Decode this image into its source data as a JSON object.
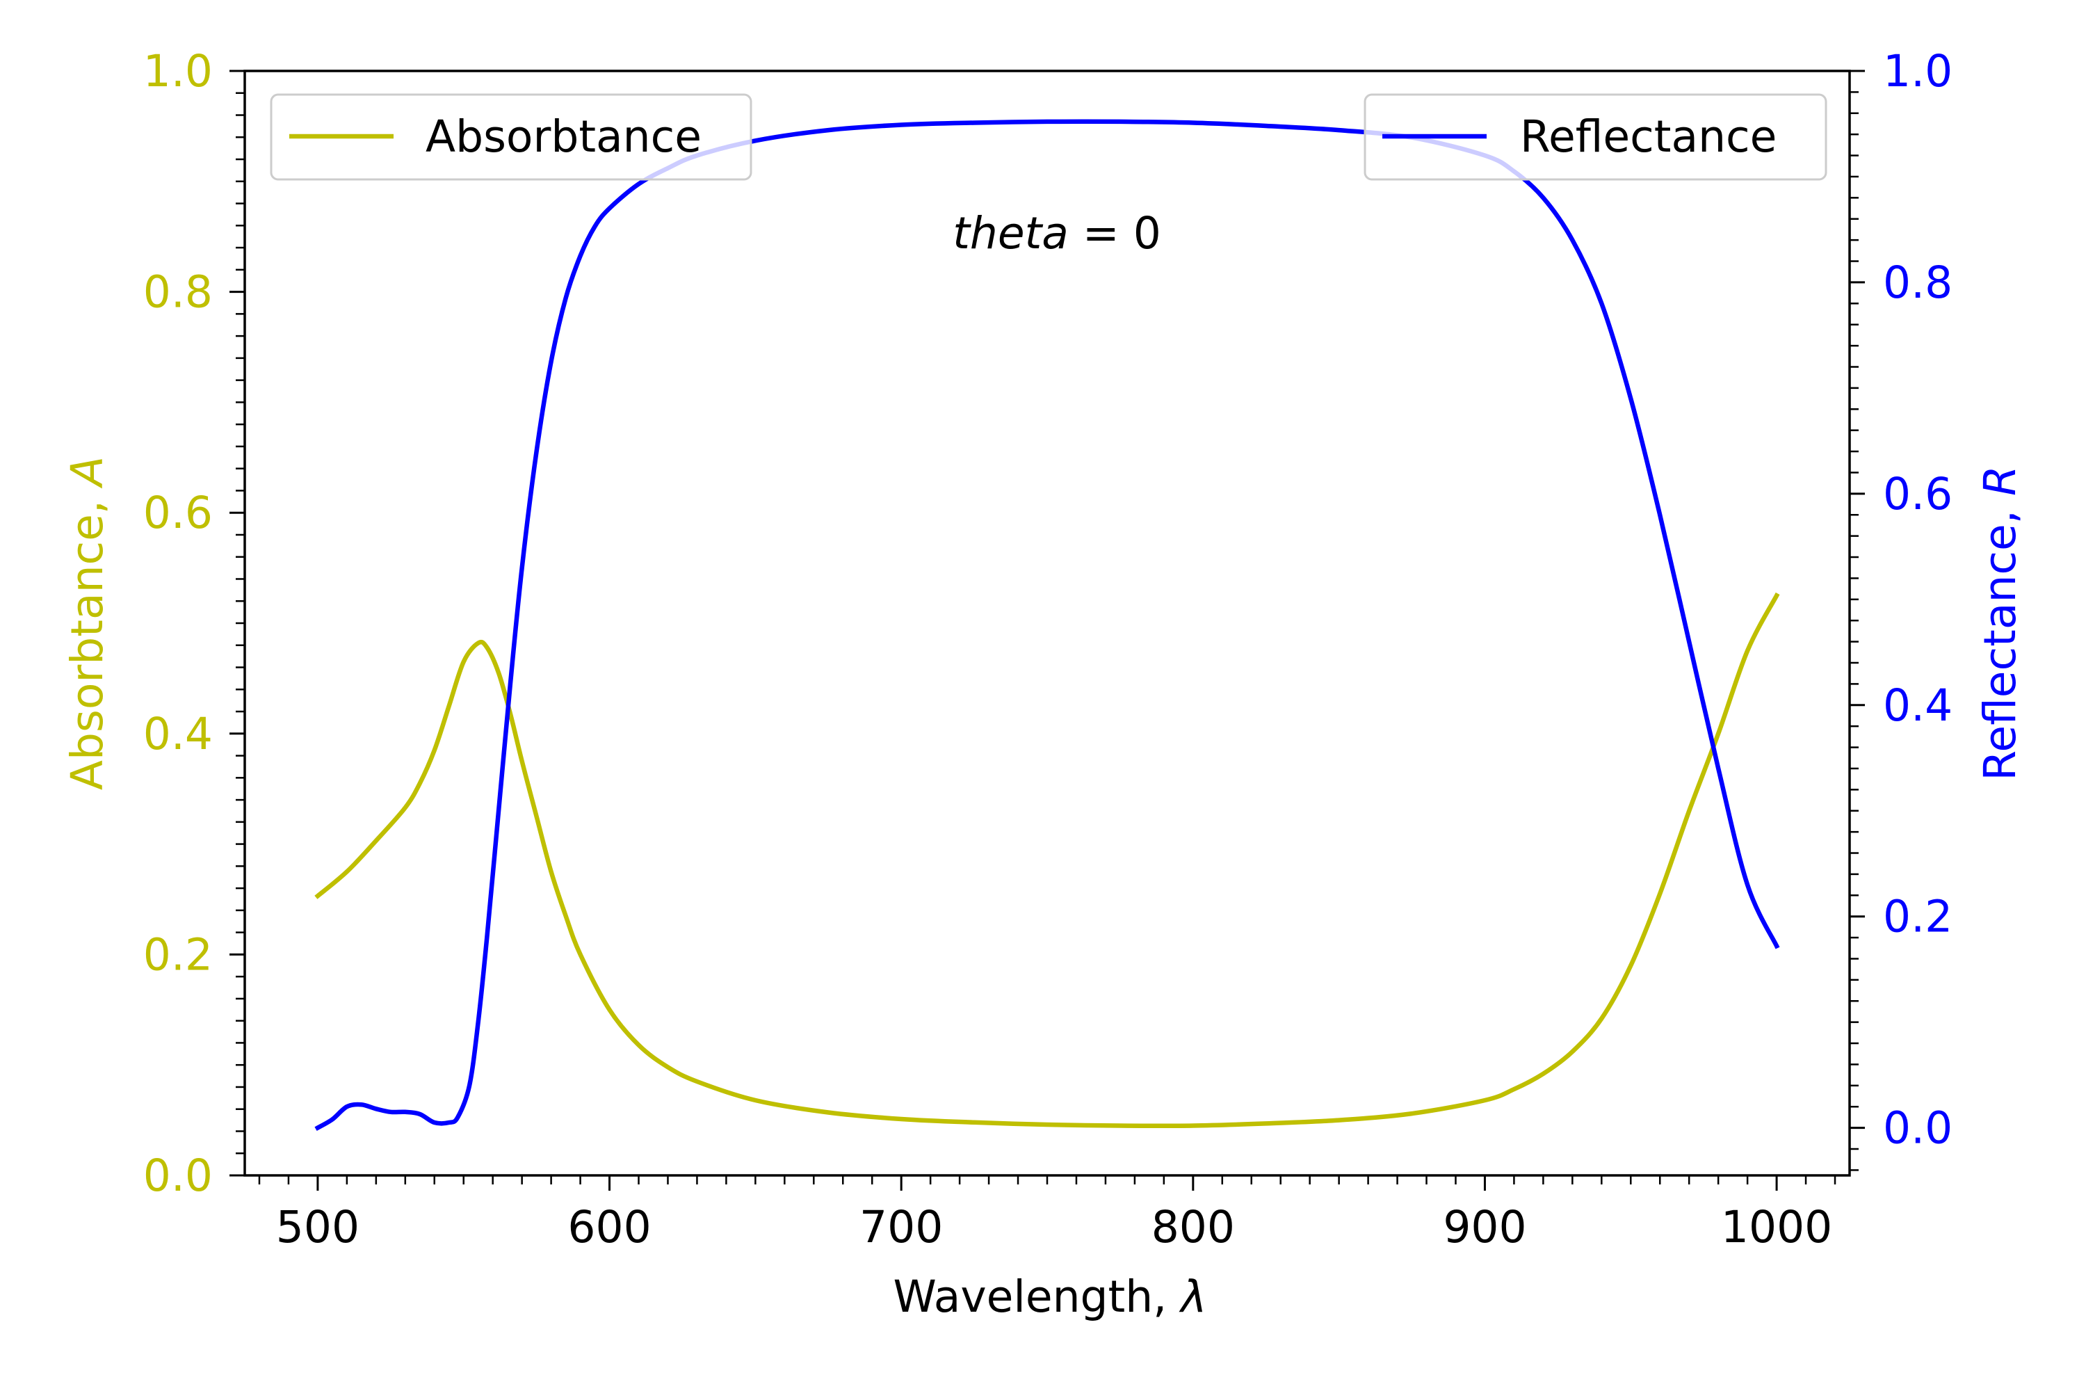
{
  "chart_data": {
    "type": "line",
    "title": "",
    "annotation": {
      "italic": "theta",
      "rest": " = 0"
    },
    "x_axis": {
      "label_text": "Wavelength, ",
      "label_symbol": "λ",
      "range": [
        475,
        1025
      ],
      "ticks": [
        500,
        600,
        700,
        800,
        900,
        1000
      ],
      "tick_labels": [
        "500",
        "600",
        "700",
        "800",
        "900",
        "1000"
      ],
      "minor_step": 10
    },
    "y_left": {
      "label_text": "Absorbtance, ",
      "label_symbol": "A",
      "range": [
        0.0,
        1.0
      ],
      "ticks": [
        0.0,
        0.2,
        0.4,
        0.6,
        0.8,
        1.0
      ],
      "tick_labels": [
        "0.0",
        "0.2",
        "0.4",
        "0.6",
        "0.8",
        "1.0"
      ],
      "minor_step": 0.02,
      "color": "#bfbf00"
    },
    "y_right": {
      "label_text": "Reflectance, ",
      "label_symbol": "R",
      "range": [
        -0.045,
        1.0
      ],
      "ticks": [
        0.0,
        0.2,
        0.4,
        0.6,
        0.8,
        1.0
      ],
      "tick_labels": [
        "0.0",
        "0.2",
        "0.4",
        "0.6",
        "0.8",
        "1.0"
      ],
      "minor_step": 0.02,
      "color": "#0000ff"
    },
    "legend_left": {
      "position": "top-left",
      "label": "Absorbtance"
    },
    "legend_right": {
      "position": "top-right",
      "label": "Reflectance"
    },
    "series": [
      {
        "name": "Absorbtance",
        "axis": "left",
        "color": "#bfbf00",
        "x": [
          500,
          510,
          520,
          530,
          535,
          540,
          545,
          550,
          555,
          558,
          562,
          566,
          570,
          575,
          580,
          585,
          590,
          600,
          610,
          620,
          630,
          650,
          675,
          700,
          725,
          750,
          775,
          800,
          825,
          850,
          875,
          900,
          910,
          920,
          930,
          940,
          950,
          960,
          970,
          980,
          990,
          1000
        ],
        "y": [
          0.253,
          0.275,
          0.303,
          0.333,
          0.355,
          0.385,
          0.425,
          0.465,
          0.482,
          0.478,
          0.455,
          0.418,
          0.375,
          0.325,
          0.275,
          0.235,
          0.2,
          0.15,
          0.118,
          0.098,
          0.085,
          0.068,
          0.057,
          0.051,
          0.048,
          0.046,
          0.045,
          0.045,
          0.047,
          0.05,
          0.056,
          0.068,
          0.078,
          0.092,
          0.112,
          0.142,
          0.19,
          0.255,
          0.33,
          0.4,
          0.475,
          0.525
        ]
      },
      {
        "name": "Reflectance",
        "axis": "right",
        "color": "#0000ff",
        "x": [
          500,
          505,
          510,
          515,
          520,
          525,
          530,
          535,
          540,
          545,
          548,
          552,
          555,
          558,
          562,
          566,
          570,
          575,
          580,
          585,
          590,
          595,
          600,
          610,
          620,
          630,
          650,
          675,
          700,
          725,
          750,
          775,
          800,
          825,
          850,
          875,
          900,
          910,
          920,
          930,
          940,
          950,
          960,
          970,
          980,
          990,
          1000
        ],
        "y": [
          0.0,
          0.008,
          0.02,
          0.022,
          0.018,
          0.015,
          0.015,
          0.013,
          0.005,
          0.005,
          0.01,
          0.04,
          0.1,
          0.18,
          0.3,
          0.42,
          0.53,
          0.64,
          0.725,
          0.785,
          0.825,
          0.853,
          0.87,
          0.893,
          0.908,
          0.92,
          0.934,
          0.944,
          0.949,
          0.951,
          0.952,
          0.952,
          0.951,
          0.948,
          0.944,
          0.937,
          0.92,
          0.905,
          0.88,
          0.84,
          0.78,
          0.69,
          0.58,
          0.46,
          0.34,
          0.23,
          0.172
        ]
      }
    ]
  }
}
